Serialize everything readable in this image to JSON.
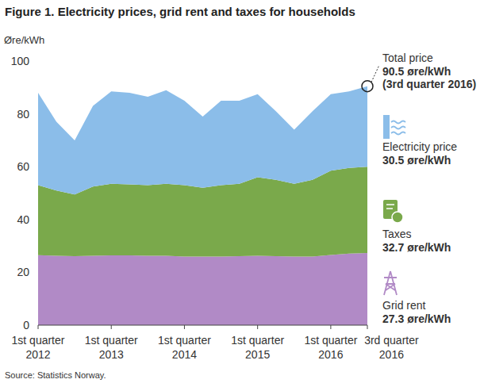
{
  "chart_data": {
    "type": "area",
    "stacked": true,
    "title": "Figure 1. Electricity prices, grid rent and taxes for households",
    "y_label": "Øre/kWh",
    "source": "Source: Statistics Norway.",
    "categories": [
      "1st quarter 2012",
      null,
      null,
      null,
      "1st quarter 2013",
      null,
      null,
      null,
      "1st quarter 2014",
      null,
      null,
      null,
      "1st quarter 2015",
      null,
      null,
      null,
      "1st quarter 2016",
      null,
      "3rd quarter 2016"
    ],
    "series": [
      {
        "name": "Grid rent",
        "color": "#b18ac6",
        "annotation": "27.3 øre/kWh",
        "values": [
          26.5,
          26.3,
          26.1,
          26.3,
          26.4,
          26.4,
          26.3,
          26.3,
          26.0,
          26.0,
          26.0,
          26.1,
          26.3,
          26.1,
          26.0,
          26.0,
          26.6,
          27.1,
          27.3
        ]
      },
      {
        "name": "Taxes",
        "color": "#7aa94b",
        "annotation": "32.7 øre/kWh",
        "values": [
          26.5,
          24.7,
          23.4,
          26.2,
          27.1,
          26.9,
          26.7,
          27.2,
          27.0,
          26.0,
          27.0,
          27.4,
          29.7,
          28.9,
          27.5,
          29.0,
          31.9,
          32.4,
          32.7
        ]
      },
      {
        "name": "Electricity price",
        "color": "#8bbde9",
        "annotation": "30.5 øre/kWh",
        "values": [
          35.0,
          26.0,
          20.5,
          30.5,
          35.0,
          34.7,
          33.5,
          35.5,
          32.0,
          27.0,
          32.0,
          31.5,
          31.5,
          26.0,
          20.5,
          26.0,
          29.0,
          29.0,
          30.5
        ]
      }
    ],
    "total_annotation": [
      "Total price",
      "90.5 øre/kWh",
      "(3rd quarter 2016)"
    ],
    "ylim": [
      0,
      100
    ],
    "yticks": [
      0,
      20,
      40,
      60,
      80,
      100
    ],
    "grid": false
  }
}
